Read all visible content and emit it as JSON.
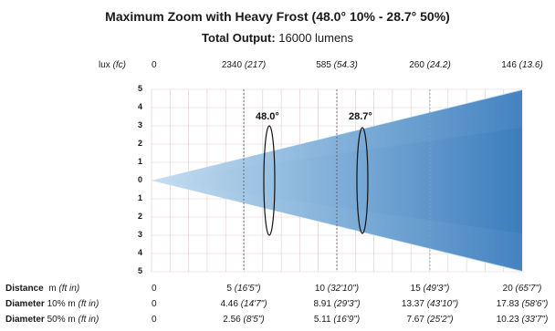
{
  "title": "Maximum Zoom with Heavy Frost (48.0° 10% - 28.7° 50%)",
  "subtitle": {
    "label": "Total Output:",
    "value": "16000 lumens"
  },
  "lux_header": {
    "unit": "lux",
    "alt": "(fc)"
  },
  "lux_values": [
    {
      "lux": "0",
      "fc": ""
    },
    {
      "lux": "2340",
      "fc": "(217)"
    },
    {
      "lux": "585",
      "fc": "(54.3)"
    },
    {
      "lux": "260",
      "fc": "(24.2)"
    },
    {
      "lux": "146",
      "fc": "(13.6)"
    }
  ],
  "y_ticks": [
    "5",
    "4",
    "3",
    "2",
    "1",
    "0",
    "1",
    "2",
    "3",
    "4",
    "5"
  ],
  "angles": {
    "wide": "48.0°",
    "narrow": "28.7°"
  },
  "rows": {
    "distance": {
      "label": "Distance",
      "unit": "m",
      "alt": "(ft in)",
      "values": [
        {
          "m": "0",
          "ft": ""
        },
        {
          "m": "5",
          "ft": "(16'5\")"
        },
        {
          "m": "10",
          "ft": "(32'10\")"
        },
        {
          "m": "15",
          "ft": "(49'3\")"
        },
        {
          "m": "20",
          "ft": "(65'7\")"
        }
      ]
    },
    "diameter10": {
      "label": "Diameter",
      "unit": "10% m",
      "alt": "(ft in)",
      "values": [
        {
          "m": "0",
          "ft": ""
        },
        {
          "m": "4.46",
          "ft": "(14'7\")"
        },
        {
          "m": "8.91",
          "ft": "(29'3\")"
        },
        {
          "m": "13.37",
          "ft": "(43'10\")"
        },
        {
          "m": "17.83",
          "ft": "(58'6\")"
        }
      ]
    },
    "diameter50": {
      "label": "Diameter",
      "unit": "50% m",
      "alt": "(ft in)",
      "values": [
        {
          "m": "0",
          "ft": ""
        },
        {
          "m": "2.56",
          "ft": "(8'5\")"
        },
        {
          "m": "5.11",
          "ft": "(16'9\")"
        },
        {
          "m": "7.67",
          "ft": "(25'2\")"
        },
        {
          "m": "10.23",
          "ft": "(33'7\")"
        }
      ]
    }
  },
  "colors": {
    "wide_beam": "#c9e3f3",
    "narrow_beam_light": "#a9cbe8",
    "narrow_beam_dark": "#2f73b8",
    "grid": "#e6c9c9"
  }
}
